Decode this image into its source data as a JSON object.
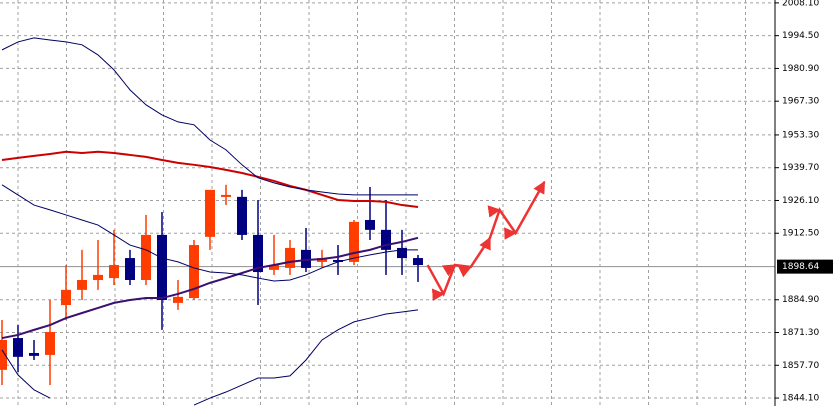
{
  "chart_data": {
    "type": "candlestick",
    "up_color": "#ff3d00",
    "down_color": "#000080",
    "open": [
      1855.8,
      1869.0,
      1862.8,
      1862.0,
      1882.7,
      1889.0,
      1893.1,
      1893.9,
      1902.2,
      1893.1,
      1911.8,
      1883.6,
      1885.6,
      1911.0,
      1927.6,
      1927.6,
      1911.8,
      1897.3,
      1898.1,
      1905.6,
      1900.6,
      1901.4,
      1900.6,
      1918.0,
      1913.9,
      1906.4,
      1902.2
    ],
    "high": [
      1876.5,
      1874.4,
      1868.2,
      1884.8,
      1899.3,
      1905.6,
      1909.7,
      1913.9,
      1905.6,
      1920.1,
      1921.3,
      1893.1,
      1909.7,
      1930.5,
      1932.6,
      1930.5,
      1926.3,
      1911.8,
      1909.7,
      1914.7,
      1905.6,
      1907.6,
      1918.0,
      1931.7,
      1926.3,
      1913.9,
      1903.5
    ],
    "low": [
      1849.5,
      1854.9,
      1859.9,
      1849.5,
      1876.5,
      1884.8,
      1889.0,
      1891.0,
      1891.0,
      1891.0,
      1872.4,
      1880.7,
      1884.8,
      1905.6,
      1924.2,
      1909.7,
      1882.7,
      1895.2,
      1895.2,
      1896.4,
      1898.1,
      1895.2,
      1899.3,
      1909.7,
      1895.2,
      1895.2,
      1892.3
    ],
    "close": [
      1868.2,
      1861.2,
      1861.6,
      1871.5,
      1889.0,
      1893.1,
      1895.2,
      1899.3,
      1893.1,
      1911.8,
      1884.8,
      1886.1,
      1907.6,
      1930.5,
      1928.4,
      1911.8,
      1896.4,
      1899.3,
      1906.4,
      1898.1,
      1902.2,
      1900.6,
      1917.2,
      1913.9,
      1905.6,
      1902.2,
      1899.3
    ],
    "overlays": [
      {
        "color": "#cc0000",
        "width": 2,
        "values": [
          1942.9,
          1943.8,
          1944.6,
          1945.4,
          1946.3,
          1945.8,
          1946.3,
          1945.8,
          1945.0,
          1944.2,
          1942.9,
          1941.7,
          1940.9,
          1940.0,
          1938.8,
          1937.5,
          1935.9,
          1934.2,
          1932.1,
          1930.5,
          1928.4,
          1926.3,
          1925.9,
          1925.9,
          1925.5,
          1924.2,
          1923.4
        ]
      },
      {
        "color": "#3a1070",
        "width": 2,
        "values": [
          1869.0,
          1870.3,
          1872.4,
          1874.4,
          1877.3,
          1879.4,
          1881.5,
          1883.6,
          1884.8,
          1885.6,
          1885.6,
          1887.3,
          1889.4,
          1891.9,
          1893.9,
          1896.0,
          1898.1,
          1899.3,
          1900.6,
          1901.4,
          1901.8,
          1902.7,
          1904.3,
          1905.6,
          1907.6,
          1908.9,
          1910.6
        ]
      },
      {
        "color": "#000066",
        "width": 1,
        "values": [
          1988.6,
          1991.9,
          1993.6,
          1992.7,
          1991.9,
          1990.7,
          1986.5,
          1980.3,
          1972.0,
          1965.8,
          1961.6,
          1958.7,
          1957.5,
          1951.2,
          1947.1,
          1940.9,
          1935.5,
          1933.4,
          1931.7,
          1930.5,
          1929.6,
          1928.8,
          1928.4,
          1928.4,
          1928.4,
          1928.4,
          1928.4
        ]
      },
      {
        "color": "#000066",
        "width": 1,
        "values": [
          1932.6,
          1928.4,
          1924.2,
          1922.2,
          1920.1,
          1918.0,
          1915.9,
          1911.8,
          1907.6,
          1905.6,
          1902.2,
          1900.6,
          1898.1,
          1896.4,
          1896.0,
          1895.2,
          1893.9,
          1892.7,
          1893.1,
          1895.2,
          1898.1,
          1900.6,
          1902.2,
          1903.5,
          1904.7,
          1905.6,
          1905.6
        ]
      },
      {
        "color": "#000066",
        "width": 1,
        "values": [
          1864.1,
          1853.7,
          1847.5,
          1844.1,
          null,
          null,
          null,
          null,
          null,
          null,
          null,
          null,
          1841.2,
          1844.1,
          1846.6,
          1849.5,
          1852.4,
          1852.4,
          1853.3,
          1859.9,
          1868.2,
          1872.4,
          1875.7,
          1877.3,
          1879.0,
          1879.8,
          1880.7
        ]
      }
    ],
    "forecast": {
      "color": "#ee3333",
      "x": [
        26.6,
        27.6,
        28.3,
        29.3,
        30.5,
        31.1,
        32.1,
        33.9
      ],
      "values": [
        1899.3,
        1887.3,
        1899.3,
        1898.5,
        1910.6,
        1922.2,
        1912.6,
        1933.8
      ]
    },
    "current_price": 1898.64,
    "ylim": [
      1840.8,
      2009.3
    ],
    "yticks": [
      {
        "value": 2008.1,
        "label": "2008.10"
      },
      {
        "value": 1994.5,
        "label": "1994.50"
      },
      {
        "value": 1980.9,
        "label": "1980.90"
      },
      {
        "value": 1967.3,
        "label": "1967.30"
      },
      {
        "value": 1953.3,
        "label": "1953.30"
      },
      {
        "value": 1939.7,
        "label": "1939.70"
      },
      {
        "value": 1926.1,
        "label": "1926.10"
      },
      {
        "value": 1912.5,
        "label": "1912.50"
      },
      {
        "value": 1884.9,
        "label": "1884.90"
      },
      {
        "value": 1871.3,
        "label": "1871.30"
      },
      {
        "value": 1857.7,
        "label": "1857.70"
      },
      {
        "value": 1844.1,
        "label": "1844.10"
      }
    ],
    "grid": true
  }
}
